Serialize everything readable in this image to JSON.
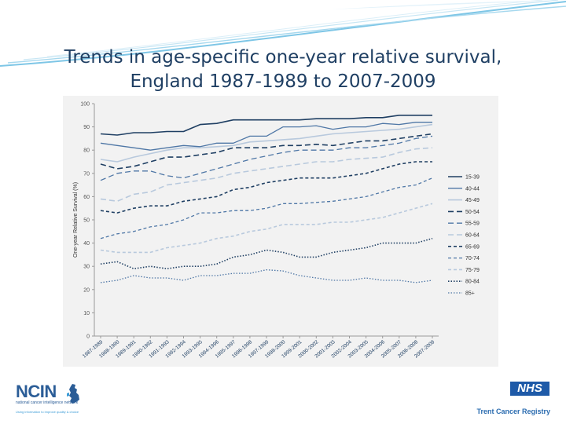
{
  "slide": {
    "title_line1": "Trends in age-specific one-year relative survival,",
    "title_line2": "England 1987-1989 to 2007-2009"
  },
  "footer": {
    "ncin_logo_text": "NCIN",
    "ncin_full_name": "national cancer intelligence network",
    "ncin_tagline": "Using information to improve quality & choice",
    "nhs_badge": "NHS",
    "registry_name": "Trent Cancer Registry"
  },
  "colors": {
    "title": "#1f3f63",
    "plot_bg": "#f2f2f2",
    "navy": "#1f3f63",
    "steel": "#4f77a6",
    "light": "#b8c9dd"
  },
  "chart_data": {
    "type": "line",
    "title": "",
    "xlabel": "",
    "ylabel": "One-year Relative Survival (%)",
    "ylim": [
      0,
      100
    ],
    "yticks": [
      0,
      10,
      20,
      30,
      40,
      50,
      60,
      70,
      80,
      90,
      100
    ],
    "grid": false,
    "legend_position": "right",
    "categories": [
      "1987-1989",
      "1988-1990",
      "1989-1991",
      "1990-1992",
      "1991-1993",
      "1992-1994",
      "1993-1995",
      "1994-1996",
      "1995-1997",
      "1996-1998",
      "1997-1999",
      "1998-2000",
      "1999-2001",
      "2000-2002",
      "2001-2003",
      "2002-2004",
      "2003-2005",
      "2004-2006",
      "2005-2007",
      "2006-2008",
      "2007-2009"
    ],
    "series": [
      {
        "name": "15-39",
        "color": "#1f3f63",
        "dash": "solid",
        "width": 1.6,
        "values": [
          87,
          86.5,
          87.5,
          87.5,
          88,
          88,
          91,
          91.5,
          93,
          93,
          93,
          93,
          93,
          93.5,
          93.5,
          93.5,
          94,
          94,
          95,
          95,
          95
        ]
      },
      {
        "name": "40-44",
        "color": "#4f77a6",
        "dash": "solid",
        "width": 1.3,
        "values": [
          83,
          82,
          81,
          80,
          81,
          82,
          81.5,
          83,
          83,
          86,
          86,
          90,
          90,
          90.5,
          89,
          90,
          90,
          91.5,
          91,
          92,
          92
        ]
      },
      {
        "name": "45-49",
        "color": "#b8c9dd",
        "dash": "solid",
        "width": 1.6,
        "values": [
          76,
          75,
          77,
          78.5,
          80,
          81,
          81,
          81.5,
          82,
          83.5,
          84,
          84.5,
          85,
          86,
          87,
          87.5,
          88,
          88.5,
          89,
          90,
          91
        ]
      },
      {
        "name": "50-54",
        "color": "#1f3f63",
        "dash": "longdash",
        "width": 1.6,
        "values": [
          74,
          72,
          73,
          75,
          77,
          77,
          78,
          79,
          81,
          81,
          81,
          82,
          82,
          82.5,
          82,
          83,
          84,
          84,
          85,
          86,
          87
        ]
      },
      {
        "name": "55-59",
        "color": "#4f77a6",
        "dash": "longdash",
        "width": 1.3,
        "values": [
          67,
          70,
          71,
          71,
          69,
          68,
          70,
          72,
          74,
          76,
          77.5,
          79,
          80,
          80,
          80,
          81,
          81,
          82,
          83,
          85,
          86
        ]
      },
      {
        "name": "60-64",
        "color": "#b8c9dd",
        "dash": "longdash",
        "width": 1.6,
        "values": [
          59,
          58,
          61,
          62,
          65,
          66,
          67,
          68,
          70,
          71,
          72,
          73,
          74,
          75,
          75,
          76,
          76.5,
          77,
          79,
          80.5,
          81
        ]
      },
      {
        "name": "65-69",
        "color": "#1f3f63",
        "dash": "dash",
        "width": 1.6,
        "values": [
          54,
          53,
          55,
          56,
          56,
          58,
          59,
          60,
          63,
          64,
          66,
          67,
          68,
          68,
          68,
          69,
          70,
          72,
          74,
          75,
          75
        ]
      },
      {
        "name": "70-74",
        "color": "#4f77a6",
        "dash": "dash",
        "width": 1.3,
        "values": [
          42,
          44,
          45,
          47,
          48,
          50,
          53,
          53,
          54,
          54,
          55,
          57,
          57,
          57.5,
          58,
          59,
          60,
          62,
          64,
          65,
          68
        ]
      },
      {
        "name": "75-79",
        "color": "#b8c9dd",
        "dash": "dash",
        "width": 1.6,
        "values": [
          37,
          36,
          36,
          36,
          38,
          39,
          40,
          42,
          43,
          45,
          46,
          48,
          48,
          48,
          49,
          49,
          50,
          51,
          53,
          55,
          57
        ]
      },
      {
        "name": "80-84",
        "color": "#1f3f63",
        "dash": "dot",
        "width": 1.6,
        "values": [
          31,
          32,
          29,
          30,
          29,
          30,
          30,
          31,
          34,
          35,
          37,
          36,
          34,
          34,
          36,
          37,
          38,
          40,
          40,
          40,
          42
        ]
      },
      {
        "name": "85+",
        "color": "#4f77a6",
        "dash": "dot",
        "width": 1.3,
        "values": [
          23,
          24,
          26,
          25,
          25,
          24,
          26,
          26,
          27,
          27,
          28.5,
          28,
          26,
          25,
          24,
          24,
          25,
          24,
          24,
          23,
          24
        ]
      }
    ]
  }
}
